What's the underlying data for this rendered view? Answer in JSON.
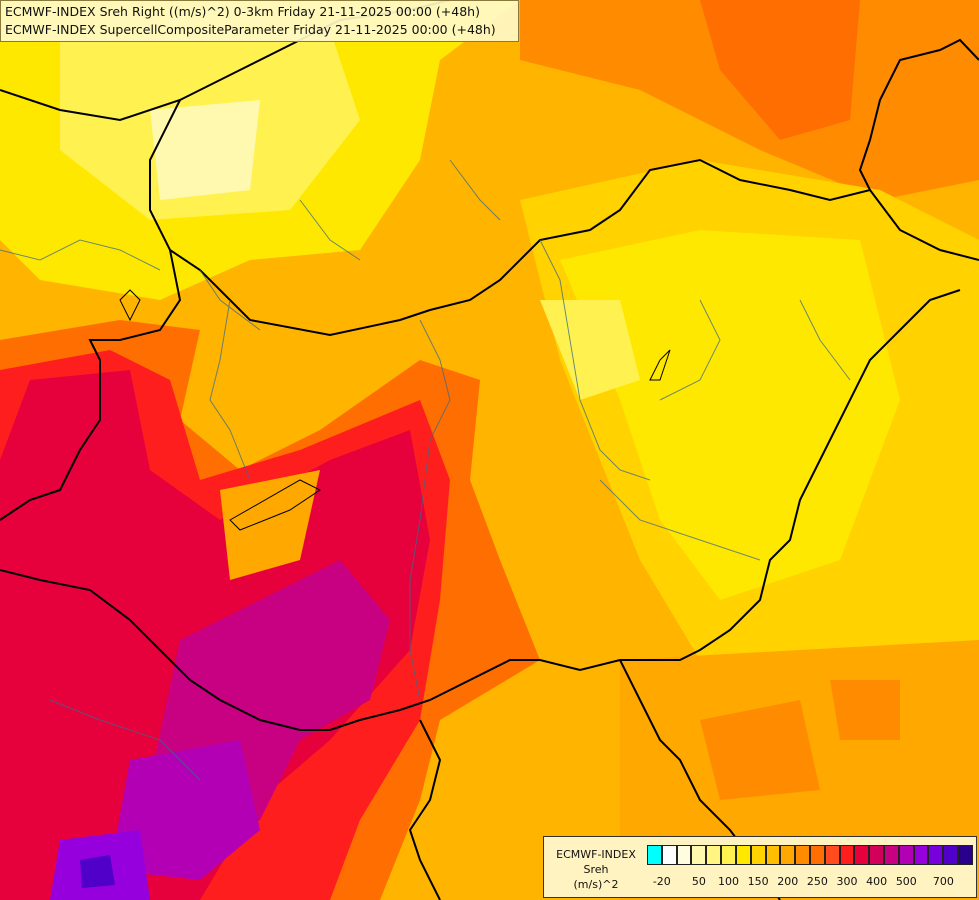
{
  "title": {
    "line1": "ECMWF-INDEX Sreh Right ((m/s)^2) 0-3km Friday 21-11-2025 00:00 (+48h)",
    "line2": "ECMWF-INDEX SupercellCompositeParameter Friday 21-11-2025 00:00 (+48h)"
  },
  "legend": {
    "label1": "ECMWF-INDEX",
    "label2": "Sreh",
    "label3": "(m/s)^2",
    "colors": [
      "#00ffff",
      "#ffffff",
      "#fffde0",
      "#fff9b0",
      "#fff580",
      "#fff250",
      "#ffe800",
      "#ffd200",
      "#ffbe00",
      "#ffa800",
      "#ff8c00",
      "#ff6e00",
      "#ff4b1e",
      "#ff1e1e",
      "#e6003c",
      "#d2005a",
      "#c80082",
      "#b400b4",
      "#9600dc",
      "#7800dc",
      "#5000c8",
      "#28008c"
    ],
    "ticks": [
      "-20",
      "50",
      "100",
      "150",
      "200",
      "250",
      "300",
      "400",
      "500",
      "700"
    ]
  }
}
